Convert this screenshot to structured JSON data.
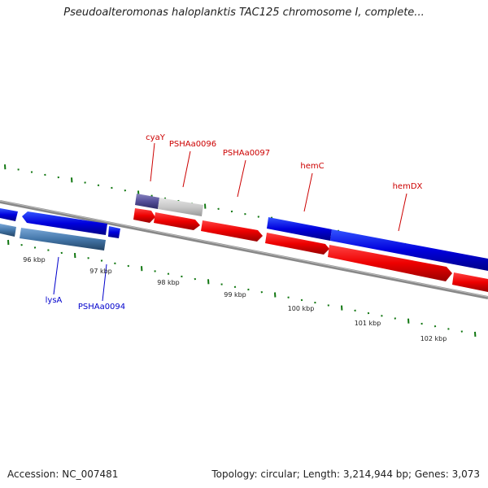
{
  "title": "Pseudoalteromonas haloplanktis TAC125 chromosome I, complete...",
  "accession": "Accession: NC_007481",
  "summary": "Topology: circular; Length: 3,214,944 bp; Genes: 3,073",
  "colors": {
    "forward_gene": "#0000ee",
    "forward_gene_label": "#cc0000",
    "reverse_gene": "#ee0000",
    "reverse_gene_label": "#0000cc",
    "tick": "#117711",
    "backbone": "#888888"
  },
  "scale_labels": [
    "96 kbp",
    "97 kbp",
    "98 kbp",
    "99 kbp",
    "100 kbp",
    "101 kbp",
    "102 kbp"
  ],
  "gene_labels": [
    {
      "id": "cyaY",
      "text": "cyaY",
      "strand": "forward"
    },
    {
      "id": "PSHAa0096",
      "text": "PSHAa0096",
      "strand": "forward"
    },
    {
      "id": "PSHAa0097",
      "text": "PSHAa0097",
      "strand": "forward"
    },
    {
      "id": "hemC",
      "text": "hemC",
      "strand": "forward"
    },
    {
      "id": "hemDX",
      "text": "hemDX",
      "strand": "forward"
    },
    {
      "id": "lysA",
      "text": "lysA",
      "strand": "reverse"
    },
    {
      "id": "PSHAa0094",
      "text": "PSHAa0094",
      "strand": "reverse"
    }
  ]
}
